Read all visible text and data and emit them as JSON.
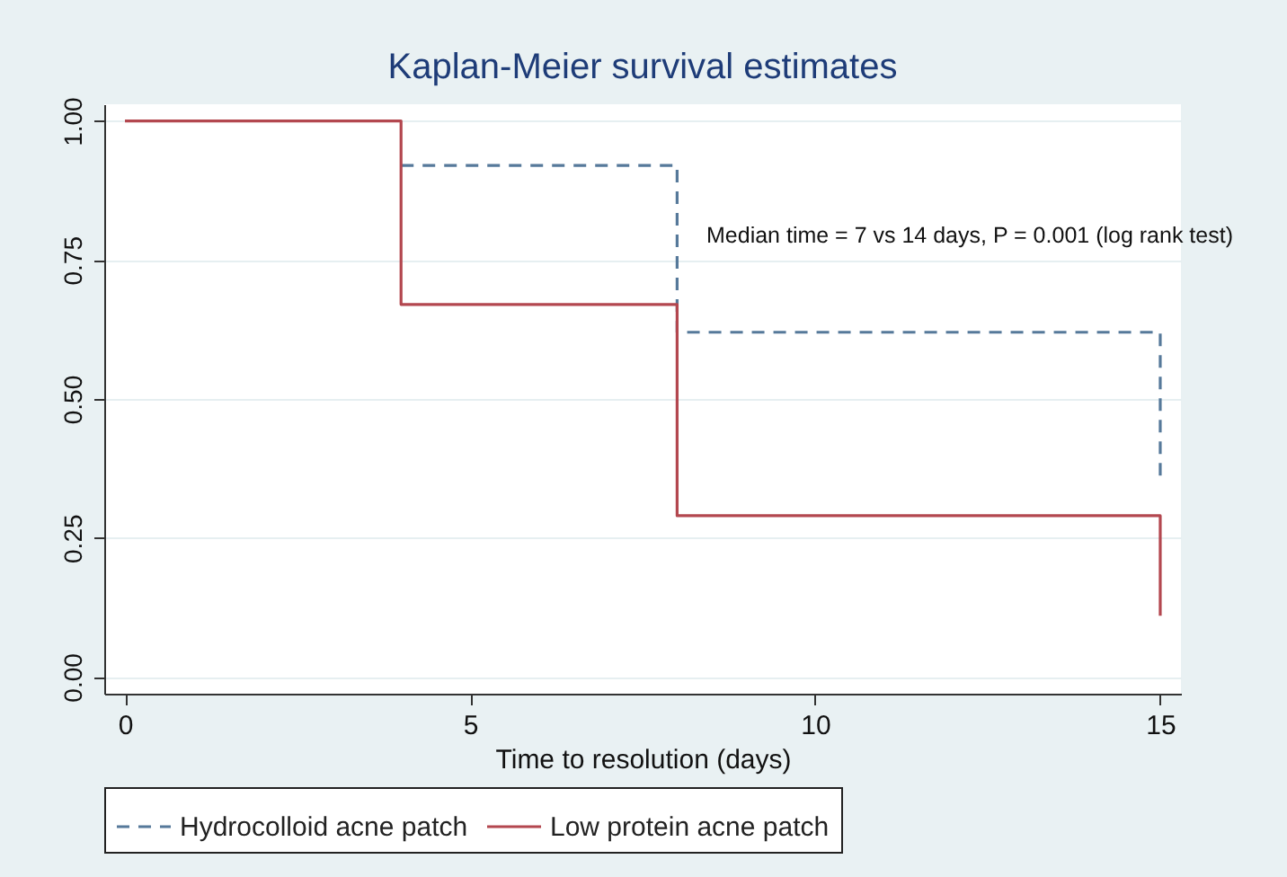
{
  "chart_data": {
    "type": "step",
    "title": "Kaplan-Meier survival estimates",
    "xlabel": "Time to resolution (days)",
    "xlim": [
      -0.3,
      15.3
    ],
    "xticks": [
      0,
      5,
      10,
      15
    ],
    "ylim": [
      -0.03,
      1.03
    ],
    "yticks": [
      {
        "value": 0,
        "label": "0.00"
      },
      {
        "value": 0.25,
        "label": "0.25"
      },
      {
        "value": 0.5,
        "label": "0.50"
      },
      {
        "value": 0.75,
        "label": "0.75"
      },
      {
        "value": 1,
        "label": "1.00"
      }
    ],
    "grid": "y",
    "legend": "bottom",
    "marker": "none",
    "annotations": [
      "Median time = 7 vs 14 days, P = 0.001 (log rank test)"
    ],
    "series": [
      {
        "name": "Hydrocolloid acne patch",
        "color": "#56799a",
        "line_style": "dashed",
        "x": [
          4,
          8,
          15
        ],
        "values": [
          0.92,
          0.62,
          0.36
        ]
      },
      {
        "name": "Low protein acne patch",
        "color": "#b3474f",
        "line_style": "solid",
        "x": [
          0,
          4,
          8,
          15
        ],
        "values": [
          1,
          0.67,
          0.29,
          0.11
        ]
      }
    ]
  }
}
